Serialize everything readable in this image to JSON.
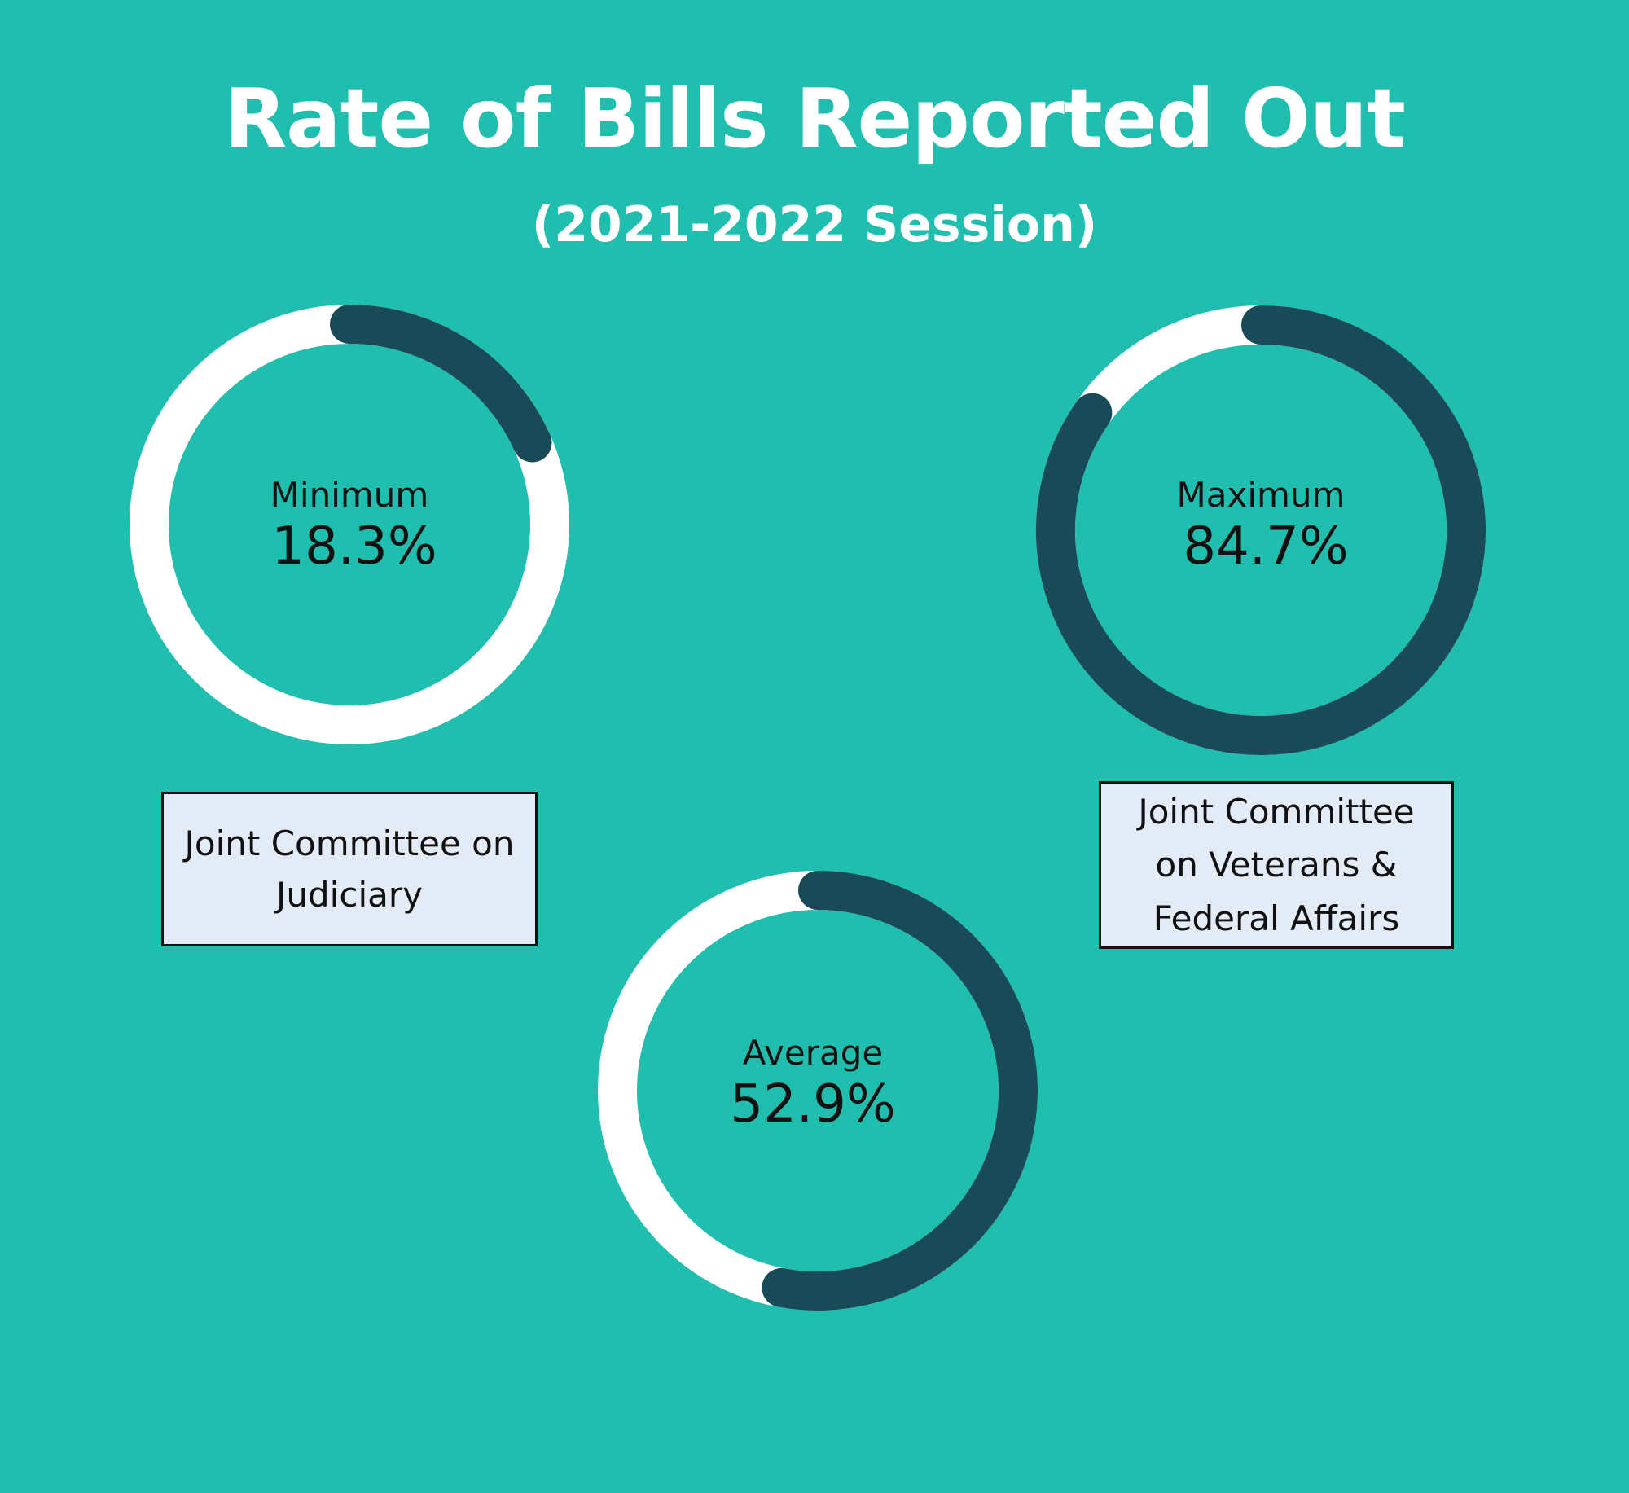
{
  "title": "Rate of Bills Reported Out",
  "subtitle": "(2021-2022 Session)",
  "colors": {
    "background": "#1fbeae",
    "track": "#ffffff",
    "progress": "#184a58",
    "box_fill": "#e3ecf6"
  },
  "chart_data": [
    {
      "type": "pie",
      "variant": "donut-gauge",
      "label": "Minimum",
      "value_label": "18.3%",
      "value": 18.3,
      "max": 100,
      "committee": "Joint Committee on Judiciary"
    },
    {
      "type": "pie",
      "variant": "donut-gauge",
      "label": "Maximum",
      "value_label": "84.7%",
      "value": 84.7,
      "max": 100,
      "committee": "Joint Committee on Veterans & Federal Affairs"
    },
    {
      "type": "pie",
      "variant": "donut-gauge",
      "label": "Average",
      "value_label": "52.9%",
      "value": 52.9,
      "max": 100
    }
  ]
}
